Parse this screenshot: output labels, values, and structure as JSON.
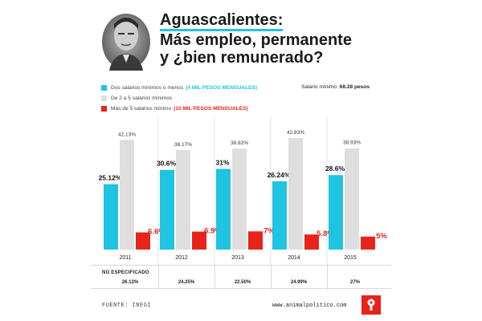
{
  "title": {
    "line1": "Aguascalientes:",
    "line2": "Más empleo, permanente",
    "line3": "y ¿bien remunerado?"
  },
  "legend": [
    {
      "text": "Dos salarios mínimos o menos",
      "emphasis": "(4 MIL PESOS MENSUALES)",
      "color": "#1fc4e0",
      "emphasis_color": "#1fc4e0"
    },
    {
      "text": "De 2 a 5 salarios mínimos",
      "emphasis": "",
      "color": "#dedede",
      "emphasis_color": "#444444"
    },
    {
      "text": "Más de 5 salarios mínimo",
      "emphasis": "(10 MIL PESOS MENSUALES)",
      "color": "#e8231c",
      "emphasis_color": "#e8231c"
    }
  ],
  "salary_note": {
    "label": "Salario mínimo:",
    "value": "68.28 pesos"
  },
  "chart_data": {
    "type": "bar",
    "categories": [
      "2011",
      "2012",
      "2013",
      "2014",
      "2015"
    ],
    "series": [
      {
        "values": [
          25.12,
          30.6,
          31,
          26.24,
          28.6
        ],
        "labels": [
          "25.12%",
          "30.6%",
          "31%",
          "26.24%",
          "28.6%"
        ],
        "color": "#1fc4e0"
      },
      {
        "values": [
          42.13,
          38.17,
          38.82,
          42.83,
          38.93
        ],
        "labels": [
          "42.13%",
          "38.17%",
          "38.82%",
          "42.83%",
          "38.93%"
        ],
        "color": "#dedede"
      },
      {
        "values": [
          6.6,
          6.9,
          7,
          5.8,
          5
        ],
        "labels": [
          "6.6%",
          "6.9%",
          "7%",
          "5.8%",
          "5%"
        ],
        "color": "#e8231c"
      }
    ],
    "ylim": [
      0,
      45
    ],
    "grid": false
  },
  "not_specified": {
    "label": "NO ESPECIFICADO",
    "values": [
      "26.12%",
      "24.25%",
      "22.50%",
      "24.99%",
      "27%"
    ]
  },
  "footer": {
    "source": "FUENTE: INEGI",
    "site": "www.animalpolitico.com"
  },
  "icons": {
    "portrait": "portrait-photo",
    "brand": "animal-politico-logo-icon"
  }
}
